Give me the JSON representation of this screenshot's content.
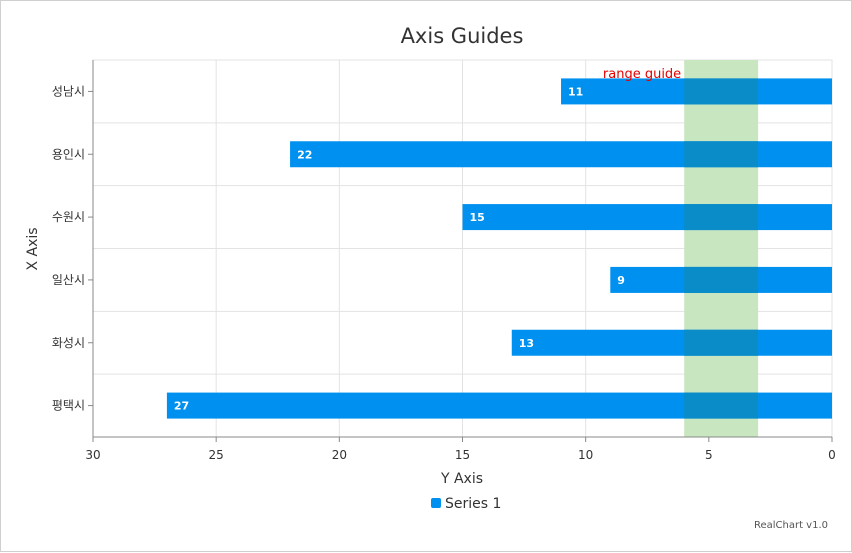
{
  "chart_data": {
    "type": "bar",
    "orientation": "horizontal",
    "title": "Axis Guides",
    "xlabel": "X Axis",
    "ylabel": "Y Axis",
    "categories": [
      "성남시",
      "용인시",
      "수원시",
      "일산시",
      "화성시",
      "평택시"
    ],
    "series": [
      {
        "name": "Series 1",
        "values": [
          11,
          22,
          15,
          9,
          13,
          27
        ],
        "color": "#0090f0"
      }
    ],
    "value_axis": {
      "min": 0,
      "max": 30,
      "reversed": true,
      "ticks": [
        30,
        25,
        20,
        15,
        10,
        5,
        0
      ]
    },
    "range_guide": {
      "from": 3,
      "to": 6,
      "label": "range guide",
      "color": "#c8e6c0",
      "label_color": "#e60000"
    },
    "grid": true,
    "legend": "bottom-center",
    "show_data_labels": true
  },
  "credit": "RealChart v1.0"
}
